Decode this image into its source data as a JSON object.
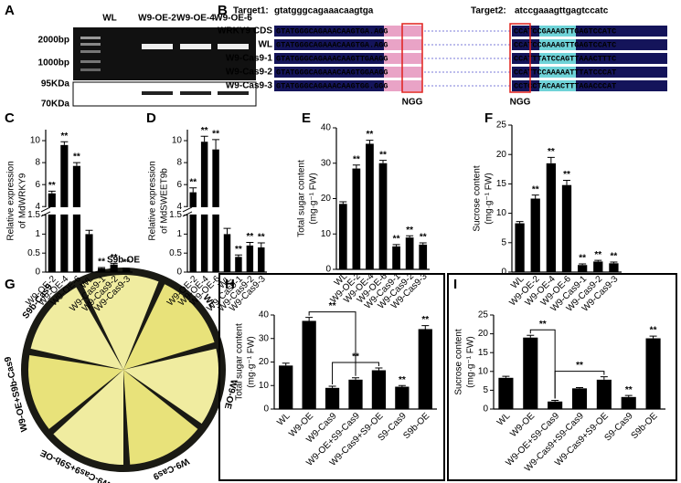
{
  "panel_labels": [
    "A",
    "B",
    "C",
    "D",
    "E",
    "F",
    "G",
    "H",
    "I"
  ],
  "panel_a": {
    "lanes": [
      "WL",
      "W9-OE-2",
      "W9-OE-4",
      "W9-OE-6"
    ],
    "markers": [
      "2000bp",
      "1000bp",
      "95KDa",
      "70KDa"
    ]
  },
  "panel_b": {
    "target1_label": "Target1:",
    "target1_seq": "gtatgggcagaaacaagtga",
    "target2_label": "Target2:",
    "target2_seq": "atccgaaagttgagtccatc",
    "rows": [
      {
        "name": "WRKY9 CDS",
        "seq1": "GTATGGGCAGAAACAAGTGA.AGG",
        "seq2": "CCATCCGAAAGTTGAGTCCATC"
      },
      {
        "name": "WL",
        "seq1": "GTATGGGCAGAAACAAGTGA.AGG",
        "seq2": "CCATCCGAAAGTTGAGTCCATC"
      },
      {
        "name": "W9-Cas9-1",
        "seq1": "GTATGGGCAGAAACAAGTTGAAGG",
        "seq2": "CCATTTATCCAGTTAAACTTTC"
      },
      {
        "name": "W9-Cas9-2",
        "seq1": "GTATGGGCAGAAACAAGTGGAAGG",
        "seq2": "CCATTCCAAAAATTTATCCCAT"
      },
      {
        "name": "W9-Cas9-3",
        "seq1": "GTATGGGCAGAAACAAGTGG.GGG",
        "seq2": "CCTCCTACAACTTTAGACCCAT"
      }
    ],
    "pam": [
      "NGG",
      "NGG"
    ]
  },
  "panel_g": {
    "labels": [
      "S9b-OE",
      "WL",
      "W9-OE",
      "W9-Cas9",
      "W9-Cas9+S9b-OE",
      "W9-OE+S9b-Cas9",
      "S9b-Cas9"
    ]
  },
  "chart_data": [
    {
      "type": "bar",
      "ylabel": [
        "Relative expression",
        "of MdWRKY9"
      ],
      "color": "#000000",
      "categories": [
        "W9-OE-2",
        "W9-OE-4",
        "W9-OE-6",
        "WL",
        "W9-Cas9-1",
        "W9-Cas9-2",
        "W9-Cas9-3"
      ],
      "values": [
        5.2,
        9.6,
        7.7,
        1.0,
        0.1,
        0.2,
        0.08
      ],
      "errors": [
        0.2,
        0.3,
        0.3,
        0.1,
        0.02,
        0.03,
        0.02
      ],
      "significance": [
        "**",
        "**",
        "**",
        null,
        "**",
        "**",
        "**"
      ],
      "ylim": [
        0,
        11
      ],
      "ybreak": [
        1.5,
        4
      ],
      "yticks": [
        0,
        0.5,
        1,
        1.5,
        4,
        6,
        8,
        10
      ]
    },
    {
      "type": "bar",
      "ylabel": [
        "Relative expression",
        "of MdSWEET9b"
      ],
      "color": "#000000",
      "categories": [
        "W9-OE-2",
        "W9-OE-4",
        "W9-OE-6",
        "WL",
        "W9-Cas9-1",
        "W9-Cas9-2",
        "W9-Cas9-3"
      ],
      "values": [
        5.3,
        9.9,
        9.2,
        1.0,
        0.4,
        0.7,
        0.65
      ],
      "errors": [
        0.4,
        0.5,
        0.9,
        0.15,
        0.05,
        0.08,
        0.12
      ],
      "significance": [
        "**",
        "**",
        "**",
        null,
        "**",
        "**",
        "**"
      ],
      "ylim": [
        0,
        11
      ],
      "ybreak": [
        1.5,
        4
      ],
      "yticks": [
        0,
        0.5,
        1,
        1.5,
        4,
        6,
        8,
        10
      ]
    },
    {
      "type": "bar",
      "ylabel": [
        "Total sugar content",
        "(mg·g⁻¹ FW)"
      ],
      "color": "#000000",
      "categories": [
        "WL",
        "W9-OE-2",
        "W9-OE-4",
        "W9-OE-6",
        "W9-Cas9-1",
        "W9-Cas9-2",
        "W9-Cas9-3"
      ],
      "values": [
        18.5,
        28.5,
        35.5,
        30,
        6.5,
        9,
        7
      ],
      "errors": [
        0.6,
        1,
        1,
        0.8,
        0.5,
        0.5,
        0.5
      ],
      "significance": [
        null,
        "**",
        "**",
        "**",
        "**",
        "**",
        "**"
      ],
      "ylim": [
        0,
        40
      ],
      "yticks": [
        0,
        10,
        20,
        30,
        40
      ]
    },
    {
      "type": "bar",
      "ylabel": [
        "Sucrose content",
        "(mg·g⁻¹ FW)"
      ],
      "color": "#000000",
      "categories": [
        "WL",
        "W9-OE-2",
        "W9-OE-4",
        "W9-OE-6",
        "W9-Cas9-1",
        "W9-Cas9-2",
        "W9-Cas9-3"
      ],
      "values": [
        8.3,
        12.5,
        18.5,
        14.8,
        1.2,
        1.8,
        1.5
      ],
      "errors": [
        0.3,
        0.6,
        1,
        0.8,
        0.2,
        0.2,
        0.2
      ],
      "significance": [
        null,
        "**",
        "**",
        "**",
        "**",
        "**",
        "**"
      ],
      "ylim": [
        0,
        25
      ],
      "yticks": [
        0,
        5,
        10,
        15,
        20,
        25
      ]
    },
    {
      "type": "bar",
      "ylabel": [
        "Total sugar content",
        "(mg·g⁻¹ FW)"
      ],
      "color": "#000000",
      "categories": [
        "WL",
        "W9-OE",
        "W9-Cas9",
        "W9-OE+S9-Cas9",
        "W9-Cas9+S9-OE",
        "S9-Cas9",
        "S9b-OE"
      ],
      "values": [
        18.5,
        37.5,
        9,
        12.5,
        16.5,
        9.5,
        34
      ],
      "errors": [
        1,
        1.5,
        0.7,
        0.8,
        1,
        0.5,
        1.5
      ],
      "significance": [
        null,
        null,
        null,
        null,
        null,
        "**",
        "**"
      ],
      "brackets": [
        {
          "label": "**",
          "from": "W9-OE",
          "to": "W9-OE+S9-Cas9"
        },
        {
          "label": "**",
          "from": "W9-Cas9",
          "to": "W9-Cas9+S9-OE"
        }
      ],
      "ylim": [
        0,
        40
      ],
      "yticks": [
        0,
        10,
        20,
        30,
        40
      ]
    },
    {
      "type": "bar",
      "ylabel": [
        "Sucrose content",
        "(mg·g⁻¹ FW)"
      ],
      "color": "#000000",
      "categories": [
        "WL",
        "W9-OE",
        "W9-OE+S9-Cas9",
        "W9-Cas9+S9-Cas9",
        "W9-Cas9+S9-OE",
        "S9-Cas9",
        "S9b-OE"
      ],
      "values": [
        8.3,
        19,
        2,
        5.5,
        7.8,
        3.2,
        18.8
      ],
      "errors": [
        0.4,
        0.6,
        0.3,
        0.2,
        0.8,
        0.4,
        0.6
      ],
      "significance": [
        null,
        null,
        null,
        null,
        null,
        "**",
        "**"
      ],
      "brackets": [
        {
          "label": "**",
          "from": "W9-OE",
          "to": "W9-OE+S9-Cas9"
        },
        {
          "label": "**",
          "from": "W9-OE+S9-Cas9",
          "to": "W9-Cas9+S9-OE"
        }
      ],
      "ylim": [
        0,
        25
      ],
      "yticks": [
        0,
        5,
        10,
        15,
        20,
        25
      ]
    }
  ]
}
